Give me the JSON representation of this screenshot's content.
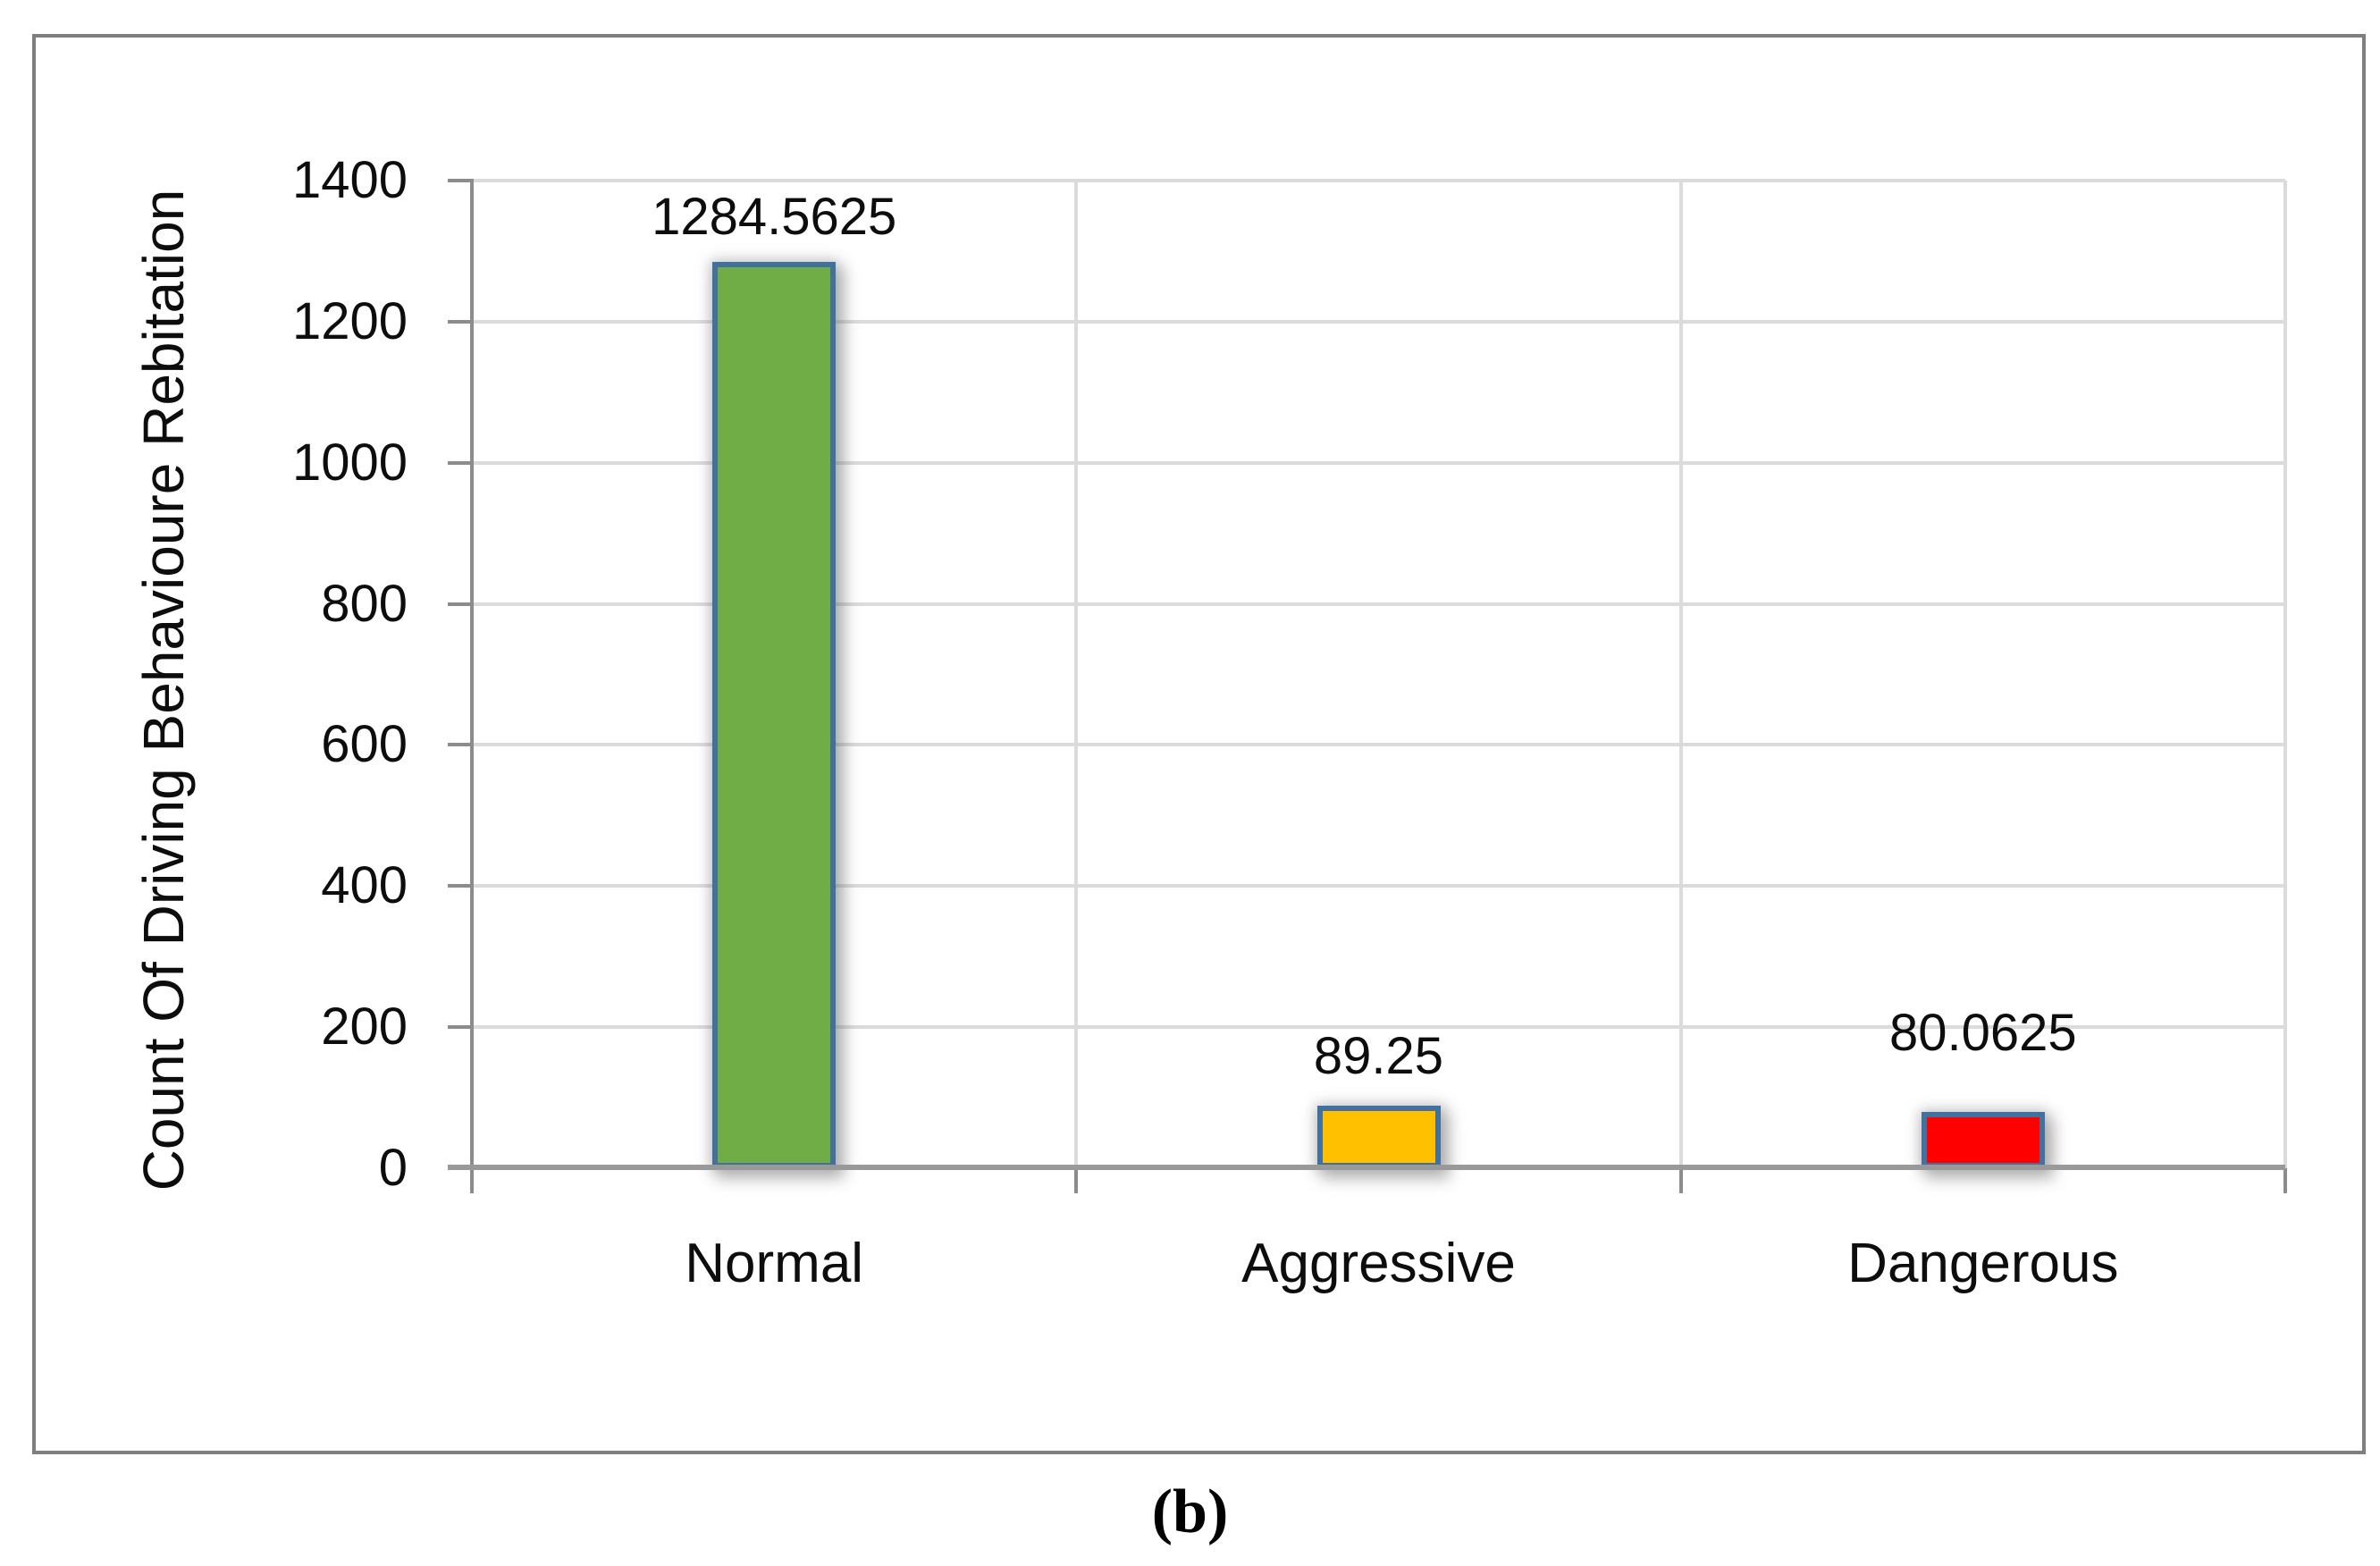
{
  "figure": {
    "caption": "(b)"
  },
  "chart_data": {
    "type": "bar",
    "title": "",
    "categories": [
      "Normal",
      "Aggressive",
      "Dangerous"
    ],
    "values": [
      1284.5625,
      89.25,
      80.0625
    ],
    "value_labels": [
      "1284.5625",
      "89.25",
      "80.0625"
    ],
    "series": [
      {
        "name": "Count Of Driving Behavioure Rebitation",
        "values": [
          1284.5625,
          89.25,
          80.0625
        ]
      }
    ],
    "bar_colors": [
      "#70AD47",
      "#FFC000",
      "#FF0000"
    ],
    "bar_border_color": "#41719C",
    "xlabel": "",
    "ylabel": "Count Of Driving Behavioure Rebitation",
    "ylim": [
      0,
      1400
    ],
    "ytick_step": 200,
    "yticks": [
      "0",
      "200",
      "400",
      "600",
      "800",
      "1000",
      "1200",
      "1400"
    ],
    "grid": true,
    "legend_position": "none"
  },
  "style_colors": {
    "gridline": "#DBDBDB",
    "axis_line": "#8C8C8C",
    "frame_border": "#7F7F7F",
    "text": "#0D0D0D",
    "background": "#FFFFFF"
  }
}
